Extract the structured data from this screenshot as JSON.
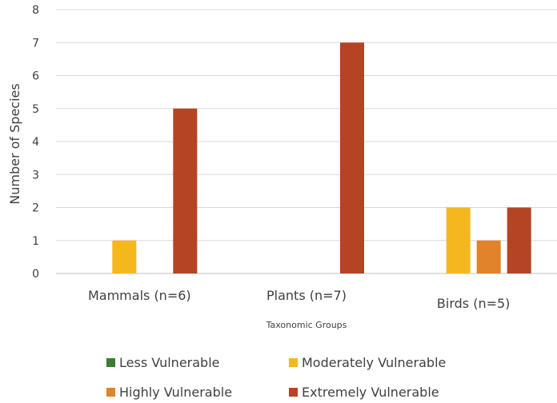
{
  "chart_data": {
    "type": "bar",
    "title": "",
    "xlabel": "Taxonomic Groups",
    "ylabel": "Number of Species",
    "ylim": [
      0,
      8
    ],
    "yticks": [
      0,
      1,
      2,
      3,
      4,
      5,
      6,
      7,
      8
    ],
    "grid": true,
    "legend_position": "bottom",
    "categories": [
      "Mammals (n=6)",
      "Plants (n=7)",
      "Birds (n=5)"
    ],
    "series": [
      {
        "name": "Less Vulnerable",
        "color": "#3a7d31",
        "values": [
          0,
          0,
          0
        ]
      },
      {
        "name": "Moderately Vulnerable",
        "color": "#f4b71e",
        "values": [
          1,
          0,
          2
        ]
      },
      {
        "name": "Highly Vulnerable",
        "color": "#e0832a",
        "values": [
          0,
          0,
          1
        ]
      },
      {
        "name": "Extremely Vulnerable",
        "color": "#b44424",
        "values": [
          5,
          7,
          2
        ]
      }
    ]
  }
}
